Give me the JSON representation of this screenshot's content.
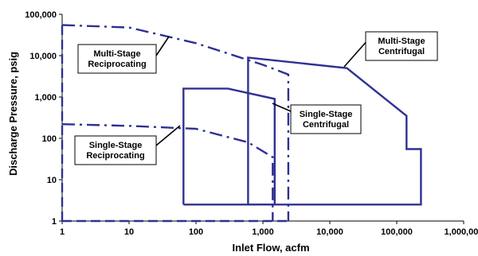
{
  "chart_data": {
    "type": "line",
    "title": "",
    "xlabel": "Inlet Flow, acfm",
    "ylabel": "Discharge Pressure, psig",
    "x_scale": "log",
    "y_scale": "log",
    "xlim": [
      1,
      1000000
    ],
    "ylim": [
      1,
      100000
    ],
    "grid": false,
    "x_ticks": [
      "1",
      "10",
      "100",
      "1,000",
      "10,000",
      "100,000",
      "1,000,000"
    ],
    "y_ticks": [
      "1",
      "10",
      "100",
      "1,000",
      "10,000",
      "100,000"
    ],
    "colors": {
      "envelope": "#2e3192",
      "text": "#000000"
    },
    "series": [
      {
        "name": "Multi-Stage Reciprocating",
        "style": "dash-dot",
        "label_lines": [
          "Multi-Stage",
          "Reciprocating"
        ],
        "points": [
          [
            1,
            55000
          ],
          [
            10,
            48000
          ],
          [
            100,
            20000
          ],
          [
            1000,
            6000
          ],
          [
            2400,
            3500
          ],
          [
            2400,
            1
          ]
        ]
      },
      {
        "name": "Single-Stage Reciprocating",
        "style": "dash-dot",
        "label_lines": [
          "Single-Stage",
          "Reciprocating"
        ],
        "points": [
          [
            1,
            220
          ],
          [
            10,
            200
          ],
          [
            100,
            170
          ],
          [
            600,
            80
          ],
          [
            1400,
            35
          ],
          [
            1400,
            1
          ]
        ]
      },
      {
        "name": "Multi-Stage Centrifugal",
        "style": "solid",
        "label_lines": [
          "Multi-Stage",
          "Centrifugal"
        ],
        "points": [
          [
            600,
            2.5
          ],
          [
            600,
            9000
          ],
          [
            18000,
            5000
          ],
          [
            140000,
            350
          ],
          [
            140000,
            55
          ],
          [
            230000,
            55
          ],
          [
            230000,
            2.5
          ],
          [
            600,
            2.5
          ]
        ]
      },
      {
        "name": "Single-Stage Centrifugal",
        "style": "solid",
        "label_lines": [
          "Single-Stage",
          "Centrifugal"
        ],
        "points": [
          [
            65,
            2.5
          ],
          [
            65,
            1600
          ],
          [
            300,
            1600
          ],
          [
            1500,
            900
          ],
          [
            1500,
            2.5
          ],
          [
            65,
            2.5
          ]
        ]
      },
      {
        "name": "Reciprocating floor",
        "style": "dashed",
        "label_lines": [],
        "points": [
          [
            1,
            1
          ],
          [
            2400,
            1
          ]
        ]
      },
      {
        "name": "Reciprocating left edge",
        "style": "dashed",
        "label_lines": [],
        "points": [
          [
            1,
            1
          ],
          [
            1,
            55000
          ]
        ]
      }
    ]
  }
}
